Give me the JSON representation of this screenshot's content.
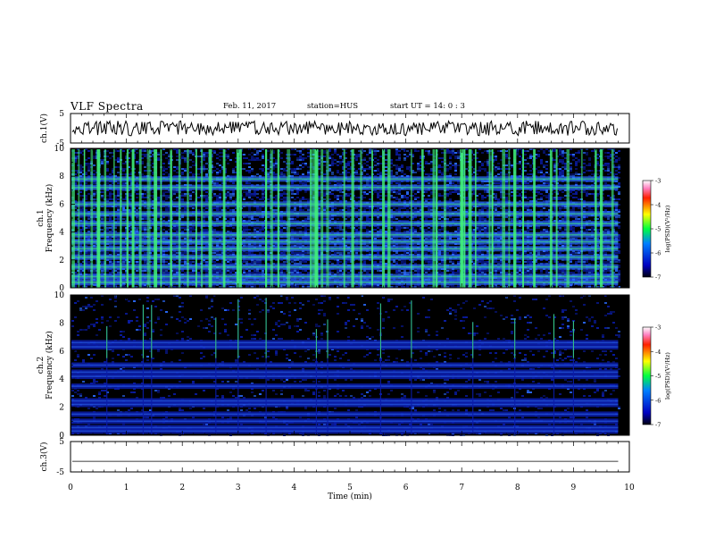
{
  "header": {
    "title": "VLF Spectra",
    "date": "Feb. 11, 2017",
    "station": "station=HUS",
    "start_ut": "start  UT =   14: 0  : 3"
  },
  "colors": {
    "background": "#000000",
    "low": "#0a1ca8",
    "mid": "#2b6cff",
    "high": "#40f07a",
    "peak": "#e8ff40"
  },
  "chart_data": [
    {
      "type": "line",
      "panel": "ch1-waveform",
      "ylabel": "ch.1(V)",
      "ylim": [
        -5,
        5
      ],
      "yticks": [
        "5",
        "-5"
      ],
      "xlim": [
        0,
        10
      ],
      "approx_level": 0
    },
    {
      "type": "heatmap",
      "panel": "ch1-spectrogram",
      "ylabel": "ch.1\nFrequency (kHz)",
      "ylabel_lines": [
        "ch.1",
        "Frequency (kHz)"
      ],
      "ylim": [
        0,
        10
      ],
      "yticks": [
        "0",
        "2",
        "4",
        "6",
        "8",
        "10"
      ],
      "xlim": [
        0,
        10
      ],
      "data_end_min": 9.8,
      "bursts_min": [
        0.05,
        0.15,
        0.25,
        0.38,
        0.5,
        0.62,
        0.78,
        0.9,
        1.02,
        1.12,
        1.25,
        1.4,
        1.52,
        1.62,
        1.8,
        1.95,
        2.1,
        2.25,
        2.35,
        2.5,
        2.75,
        3.0,
        3.05,
        3.5,
        3.6,
        3.72,
        3.9,
        4.3,
        4.35,
        4.4,
        4.5,
        4.6,
        4.9,
        5.05,
        5.2,
        5.4,
        5.6,
        5.7,
        6.1,
        6.3,
        6.5,
        6.55,
        6.7,
        7.0,
        7.05,
        7.15,
        7.25,
        7.5,
        7.55,
        7.75,
        7.85,
        7.95,
        8.1,
        8.3,
        8.6,
        8.7,
        8.9,
        9.15,
        9.4,
        9.5,
        9.7
      ],
      "bands_khz": [
        0.4,
        0.8,
        1.5,
        2.2,
        2.8,
        3.3,
        3.8,
        4.6,
        5.3,
        6.0,
        7.2,
        7.8
      ]
    },
    {
      "type": "heatmap",
      "panel": "ch2-spectrogram",
      "ylabel": "ch.2\nFrequency (kHz)",
      "ylabel_lines": [
        "ch.2",
        "Frequency (kHz)"
      ],
      "ylim": [
        0,
        10
      ],
      "yticks": [
        "0",
        "2",
        "4",
        "6",
        "8",
        "10"
      ],
      "xlim": [
        0,
        10
      ],
      "data_end_min": 9.8,
      "bursts_min": [
        0.65,
        1.3,
        1.45,
        2.6,
        3.0,
        3.5,
        4.4,
        4.6,
        5.55,
        6.1,
        7.2,
        7.95,
        8.65,
        9.0
      ],
      "bands_khz": [
        0.3,
        0.55,
        1.0,
        1.5,
        2.2,
        2.45,
        3.5,
        4.2,
        4.5,
        5.0,
        6.3,
        6.6
      ]
    },
    {
      "type": "line",
      "panel": "ch3-waveform",
      "ylabel": "ch.3(V)",
      "ylim": [
        -5,
        5
      ],
      "yticks": [
        "5",
        "-5"
      ],
      "xlim": [
        0,
        10
      ],
      "approx_level": -1.5
    }
  ],
  "colorbars": [
    {
      "label": "log(PSD)(V²/Hz)",
      "ticks": [
        "-3",
        "-4",
        "-5",
        "-6",
        "-7"
      ],
      "range": [
        -7,
        -3
      ]
    },
    {
      "label": "log(PSD)(V²/Hz)",
      "ticks": [
        "-3",
        "-4",
        "-5",
        "-6",
        "-7"
      ],
      "range": [
        -7,
        -3
      ]
    }
  ],
  "x_axis": {
    "label": "Time (min)",
    "ticks": [
      "0",
      "1",
      "2",
      "3",
      "4",
      "5",
      "6",
      "7",
      "8",
      "9",
      "10"
    ]
  }
}
